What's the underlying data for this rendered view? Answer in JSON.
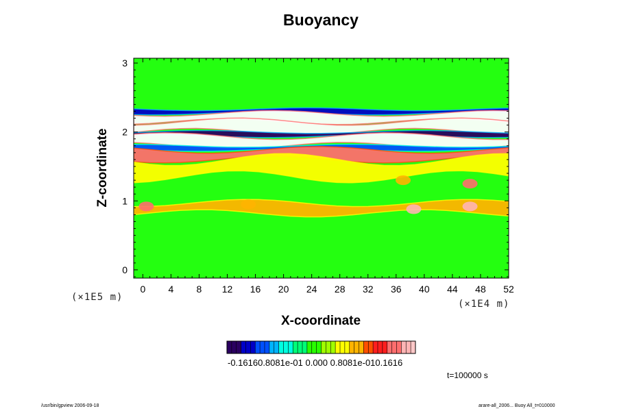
{
  "chart_data": {
    "type": "heatmap",
    "title": "Buoyancy",
    "xlabel": "X-coordinate",
    "ylabel": "Z-coordinate",
    "x_unit": "(×1E4 m)",
    "y_unit": "(×1E5 m)",
    "xlim": [
      -1.3,
      52
    ],
    "ylim": [
      -0.12,
      3.07
    ],
    "x_ticks": [
      "0",
      "4",
      "8",
      "12",
      "16",
      "20",
      "24",
      "28",
      "32",
      "36",
      "40",
      "44",
      "48",
      "52"
    ],
    "x_tick_values": [
      0,
      4,
      8,
      12,
      16,
      20,
      24,
      28,
      32,
      36,
      40,
      44,
      48,
      52
    ],
    "y_ticks": [
      "0",
      "1",
      "2",
      "3"
    ],
    "y_tick_values": [
      0,
      1,
      2,
      3
    ],
    "colorbar": {
      "min": -0.1616,
      "max": 0.1616,
      "labels_text": "-0.16160.8081e-01 0.000 0.8081e-010.1616",
      "colors": [
        "#2a0060",
        "#0000c8",
        "#0050ff",
        "#00b4ff",
        "#00ffe0",
        "#00ff78",
        "#28ff00",
        "#a0ff00",
        "#ffff00",
        "#ffb400",
        "#ff5000",
        "#ff1e1e",
        "#ff6e6e",
        "#ffb4b4"
      ]
    },
    "time_label": "t=100000 s",
    "field_summary": "background green (~0); strongly stratified band z 1.7-2.35 with white saturated and blue negative layers; red positive band near z 1.7; orange blobs near z 0.9",
    "bands": [
      {
        "z_lo": 2.27,
        "z_hi": 2.33,
        "sign": "neg",
        "level": -0.12
      },
      {
        "z_lo": 2.15,
        "z_hi": 2.27,
        "sign": "pos",
        "level": 0.2
      },
      {
        "z_lo": 2.0,
        "z_hi": 2.15,
        "sign": "pos",
        "level": 0.2
      },
      {
        "z_lo": 1.94,
        "z_hi": 2.0,
        "sign": "neg",
        "level": -0.14
      },
      {
        "z_lo": 1.8,
        "z_hi": 1.94,
        "sign": "pos",
        "level": 0.2
      },
      {
        "z_lo": 1.74,
        "z_hi": 1.8,
        "sign": "neg",
        "level": -0.1
      },
      {
        "z_lo": 1.6,
        "z_hi": 1.74,
        "sign": "pos",
        "level": 0.13
      },
      {
        "z_lo": 1.35,
        "z_hi": 1.6,
        "sign": "pos",
        "level": 0.04
      },
      {
        "z_lo": 0.82,
        "z_hi": 0.97,
        "sign": "pos",
        "level": 0.05
      }
    ],
    "blobs": [
      {
        "x": 0.5,
        "z": 0.92,
        "level": 0.13
      },
      {
        "x": 38.5,
        "z": 0.88,
        "level": 0.14
      },
      {
        "x": 46.5,
        "z": 0.92,
        "level": 0.14
      },
      {
        "x": 46.5,
        "z": 1.25,
        "level": 0.12
      },
      {
        "x": 37,
        "z": 1.3,
        "level": 0.06
      },
      {
        "x": 15,
        "z": 0.95,
        "level": 0.06
      }
    ]
  },
  "footer": {
    "left": "/usr/bin/gpview 2006-09-18",
    "right": "arare-all_2006... Buoy All_t=010000"
  }
}
